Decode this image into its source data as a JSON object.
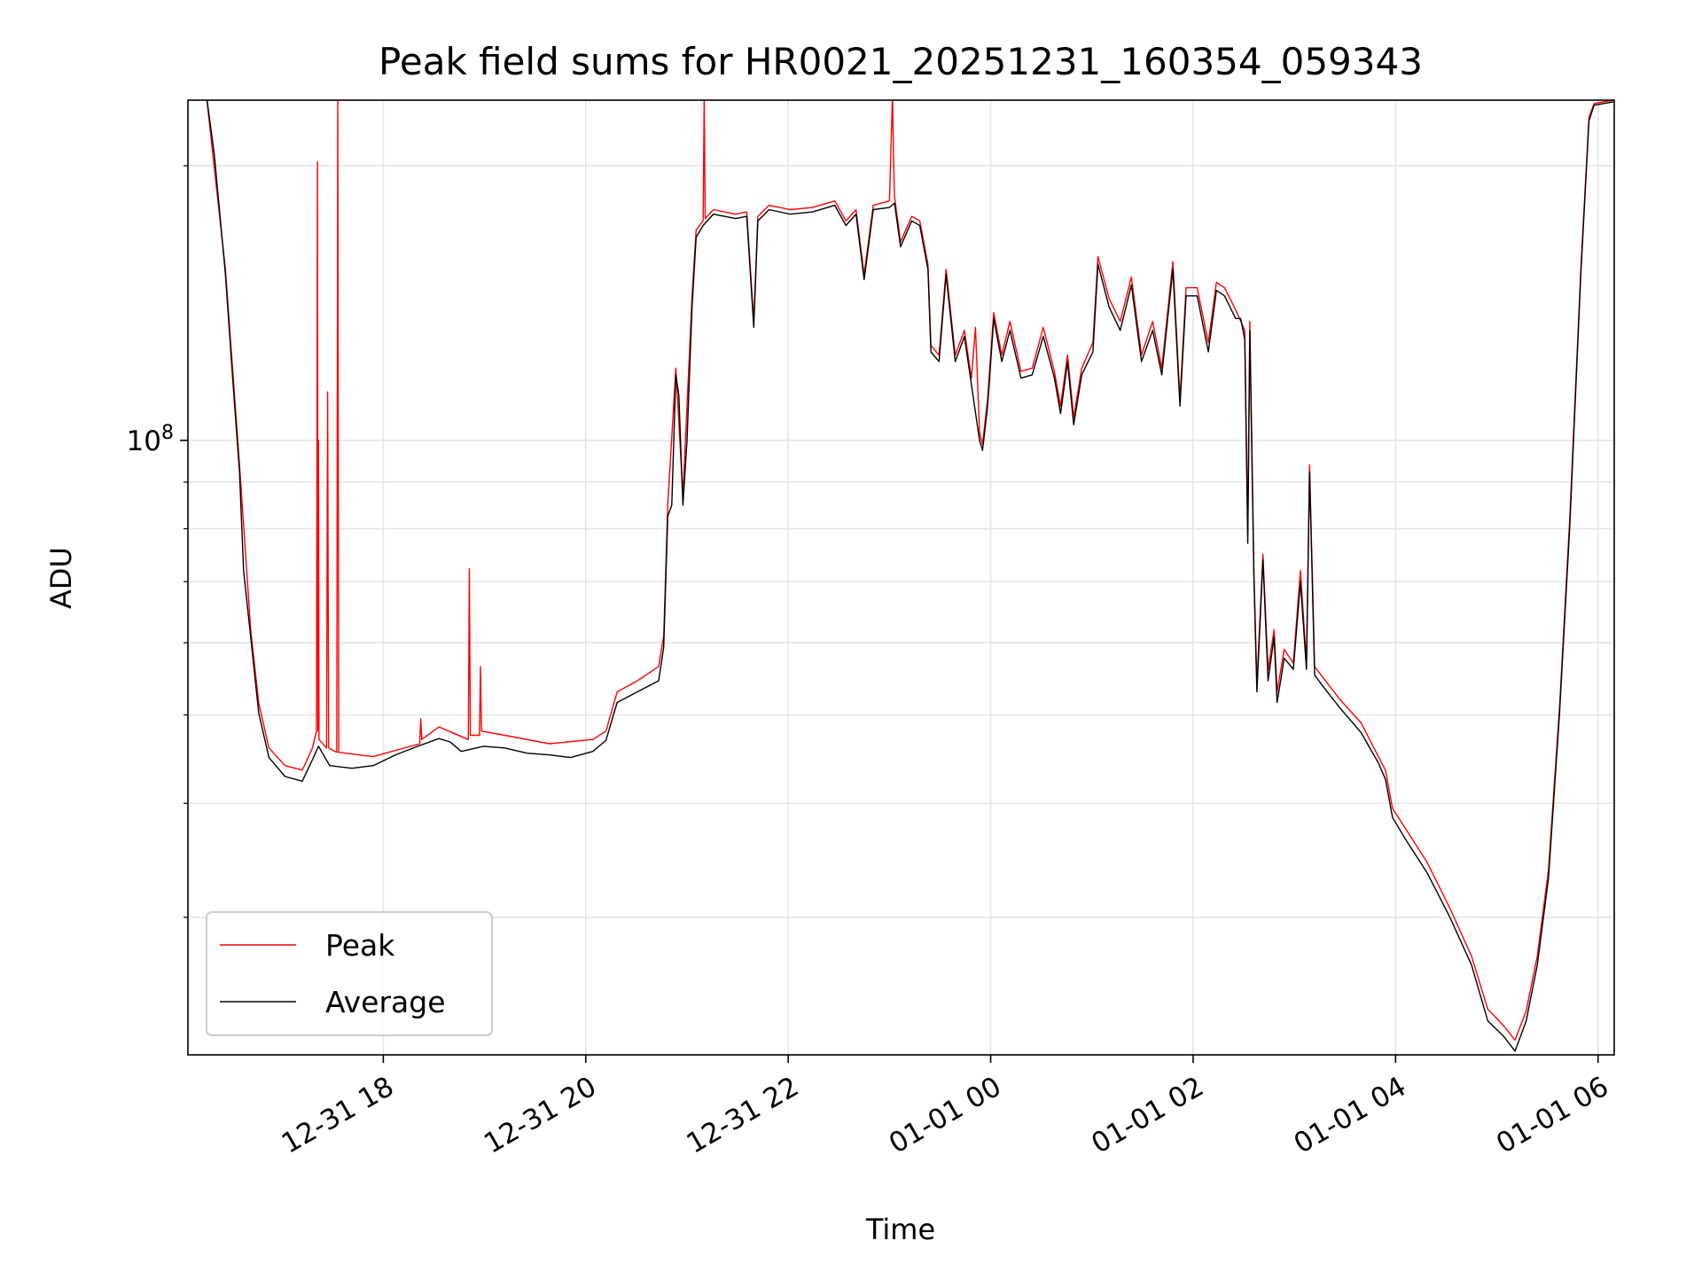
{
  "chart_data": {
    "type": "line",
    "title": "Peak field sums for HR0021_20251231_160354_059343",
    "xlabel": "Time",
    "ylabel": "ADU",
    "yscale": "log",
    "ylim": [
      21200000.0,
      236000000.0
    ],
    "xlim_hours": [
      16.07,
      30.16
    ],
    "grid": true,
    "legend_position": "lower-left",
    "x_ticks": [
      {
        "hours": 18,
        "label": "12-31 18"
      },
      {
        "hours": 20,
        "label": "12-31 20"
      },
      {
        "hours": 22,
        "label": "12-31 22"
      },
      {
        "hours": 24,
        "label": "01-01 00"
      },
      {
        "hours": 26,
        "label": "01-01 02"
      },
      {
        "hours": 28,
        "label": "01-01 04"
      },
      {
        "hours": 30,
        "label": "01-01 06"
      }
    ],
    "y_major_ticks": [
      {
        "value": 100000000.0,
        "label_base": "10",
        "label_exp": "8"
      }
    ],
    "y_minor_ticks": [
      30000000.0,
      40000000.0,
      50000000.0,
      60000000.0,
      70000000.0,
      80000000.0,
      90000000.0,
      200000000.0
    ],
    "series": [
      {
        "name": "Peak",
        "color": "#ff0000",
        "points": [
          [
            16.25,
            240000000.0
          ],
          [
            16.44,
            154000000.0
          ],
          [
            16.58,
            94000000.0
          ],
          [
            16.69,
            62000000.0
          ],
          [
            16.77,
            51500000.0
          ],
          [
            16.87,
            46000000.0
          ],
          [
            17.03,
            44000000.0
          ],
          [
            17.2,
            43500000.0
          ],
          [
            17.3,
            46000000.0
          ],
          [
            17.34,
            48000000.0
          ],
          [
            17.35,
            202000000.0
          ],
          [
            17.355,
            48000000.0
          ],
          [
            17.36,
            100000000.0
          ],
          [
            17.365,
            47000000.0
          ],
          [
            17.44,
            46000000.0
          ],
          [
            17.45,
            113000000.0
          ],
          [
            17.46,
            46000000.0
          ],
          [
            17.54,
            45500000.0
          ],
          [
            17.55,
            240000000.0
          ],
          [
            17.56,
            45500000.0
          ],
          [
            17.9,
            45000000.0
          ],
          [
            18.36,
            46500000.0
          ],
          [
            18.37,
            49500000.0
          ],
          [
            18.38,
            47000000.0
          ],
          [
            18.55,
            48500000.0
          ],
          [
            18.84,
            47000000.0
          ],
          [
            18.85,
            72300000.0
          ],
          [
            18.86,
            47500000.0
          ],
          [
            18.95,
            47500000.0
          ],
          [
            18.96,
            56500000.0
          ],
          [
            18.97,
            48000000.0
          ],
          [
            19.2,
            47500000.0
          ],
          [
            19.64,
            46500000.0
          ],
          [
            20.07,
            47000000.0
          ],
          [
            20.2,
            48000000.0
          ],
          [
            20.31,
            53000000.0
          ],
          [
            20.51,
            54500000.0
          ],
          [
            20.72,
            56500000.0
          ],
          [
            20.77,
            61000000.0
          ],
          [
            20.81,
            85000000.0
          ],
          [
            20.89,
            120000000.0
          ],
          [
            20.96,
            87000000.0
          ],
          [
            21.05,
            144000000.0
          ],
          [
            21.09,
            170000000.0
          ],
          [
            21.16,
            174000000.0
          ],
          [
            21.17,
            240000000.0
          ],
          [
            21.18,
            175000000.0
          ],
          [
            21.26,
            179000000.0
          ],
          [
            21.48,
            177000000.0
          ],
          [
            21.59,
            178000000.0
          ],
          [
            21.66,
            135000000.0
          ],
          [
            21.7,
            176000000.0
          ],
          [
            21.81,
            181000000.0
          ],
          [
            22.02,
            179000000.0
          ],
          [
            22.24,
            180000000.0
          ],
          [
            22.46,
            183000000.0
          ],
          [
            22.57,
            174000000.0
          ],
          [
            22.67,
            179000000.0
          ],
          [
            22.75,
            152000000.0
          ],
          [
            22.84,
            181000000.0
          ],
          [
            23.0,
            183000000.0
          ],
          [
            23.03,
            240000000.0
          ],
          [
            23.04,
            205000000.0
          ],
          [
            23.05,
            185000000.0
          ],
          [
            23.11,
            165000000.0
          ],
          [
            23.22,
            176000000.0
          ],
          [
            23.3,
            174000000.0
          ],
          [
            23.38,
            156000000.0
          ],
          [
            23.41,
            127000000.0
          ],
          [
            23.49,
            124000000.0
          ],
          [
            23.56,
            154000000.0
          ],
          [
            23.65,
            124000000.0
          ],
          [
            23.74,
            132000000.0
          ],
          [
            23.81,
            117000000.0
          ],
          [
            23.85,
            133000000.0
          ],
          [
            23.89,
            102000000.0
          ],
          [
            23.92,
            99000000.0
          ],
          [
            23.97,
            111000000.0
          ],
          [
            24.03,
            138000000.0
          ],
          [
            24.11,
            124000000.0
          ],
          [
            24.19,
            135000000.0
          ],
          [
            24.3,
            119000000.0
          ],
          [
            24.41,
            120000000.0
          ],
          [
            24.52,
            133000000.0
          ],
          [
            24.63,
            119000000.0
          ],
          [
            24.69,
            109000000.0
          ],
          [
            24.76,
            124000000.0
          ],
          [
            24.82,
            106000000.0
          ],
          [
            24.9,
            120000000.0
          ],
          [
            25.01,
            128000000.0
          ],
          [
            25.06,
            159000000.0
          ],
          [
            25.17,
            143000000.0
          ],
          [
            25.28,
            135000000.0
          ],
          [
            25.39,
            151000000.0
          ],
          [
            25.49,
            124000000.0
          ],
          [
            25.6,
            135000000.0
          ],
          [
            25.69,
            120000000.0
          ],
          [
            25.8,
            157000000.0
          ],
          [
            25.87,
            111000000.0
          ],
          [
            25.93,
            147000000.0
          ],
          [
            26.04,
            147000000.0
          ],
          [
            26.15,
            128000000.0
          ],
          [
            26.23,
            149000000.0
          ],
          [
            26.31,
            147000000.0
          ],
          [
            26.42,
            139000000.0
          ],
          [
            26.51,
            132000000.0
          ],
          [
            26.54,
            79000000.0
          ],
          [
            26.56,
            135000000.0
          ],
          [
            26.6,
            72000000.0
          ],
          [
            26.63,
            54000000.0
          ],
          [
            26.69,
            75000000.0
          ],
          [
            26.74,
            56000000.0
          ],
          [
            26.8,
            62000000.0
          ],
          [
            26.83,
            53000000.0
          ],
          [
            26.9,
            59000000.0
          ],
          [
            26.99,
            57000000.0
          ],
          [
            27.06,
            72000000.0
          ],
          [
            27.12,
            57000000.0
          ],
          [
            27.15,
            94000000.0
          ],
          [
            27.2,
            56500000.0
          ],
          [
            27.28,
            55000000.0
          ],
          [
            27.45,
            52000000.0
          ],
          [
            27.66,
            49000000.0
          ],
          [
            27.83,
            45000000.0
          ],
          [
            27.9,
            43500000.0
          ],
          [
            27.97,
            39500000.0
          ],
          [
            28.1,
            37500000.0
          ],
          [
            28.31,
            34500000.0
          ],
          [
            28.53,
            30800000.0
          ],
          [
            28.75,
            27200000.0
          ],
          [
            28.91,
            23800000.0
          ],
          [
            29.07,
            22800000.0
          ],
          [
            29.18,
            22000000.0
          ],
          [
            29.29,
            23700000.0
          ],
          [
            29.4,
            27200000.0
          ],
          [
            29.51,
            33800000.0
          ],
          [
            29.62,
            51000000.0
          ],
          [
            29.72,
            82000000.0
          ],
          [
            29.83,
            154000000.0
          ],
          [
            29.91,
            226000000.0
          ],
          [
            29.96,
            234000000.0
          ],
          [
            30.15,
            236000000.0
          ]
        ]
      },
      {
        "name": "Average",
        "color": "#000000",
        "points": [
          [
            16.25,
            240000000.0
          ],
          [
            16.33,
            206000000.0
          ],
          [
            16.44,
            152000000.0
          ],
          [
            16.51,
            118000000.0
          ],
          [
            16.58,
            92300000.0
          ],
          [
            16.62,
            71900000.0
          ],
          [
            16.69,
            60900000.0
          ],
          [
            16.77,
            50200000.0
          ],
          [
            16.87,
            44900000.0
          ],
          [
            17.03,
            42800000.0
          ],
          [
            17.2,
            42300000.0
          ],
          [
            17.31,
            44900000.0
          ],
          [
            17.36,
            46200000.0
          ],
          [
            17.47,
            44000000.0
          ],
          [
            17.69,
            43700000.0
          ],
          [
            17.9,
            44000000.0
          ],
          [
            18.12,
            45200000.0
          ],
          [
            18.34,
            46200000.0
          ],
          [
            18.55,
            47100000.0
          ],
          [
            18.66,
            46700000.0
          ],
          [
            18.77,
            45600000.0
          ],
          [
            18.99,
            46200000.0
          ],
          [
            19.2,
            46000000.0
          ],
          [
            19.42,
            45400000.0
          ],
          [
            19.64,
            45200000.0
          ],
          [
            19.85,
            44900000.0
          ],
          [
            20.07,
            45600000.0
          ],
          [
            20.2,
            46900000.0
          ],
          [
            20.31,
            51600000.0
          ],
          [
            20.51,
            53000000.0
          ],
          [
            20.72,
            54500000.0
          ],
          [
            20.77,
            59300000.0
          ],
          [
            20.81,
            82600000.0
          ],
          [
            20.85,
            84900000.0
          ],
          [
            20.89,
            118000000.0
          ],
          [
            20.92,
            112000000.0
          ],
          [
            20.96,
            84900000.0
          ],
          [
            21.0,
            100000000.0
          ],
          [
            21.05,
            140000000.0
          ],
          [
            21.09,
            167000000.0
          ],
          [
            21.16,
            172000000.0
          ],
          [
            21.26,
            177000000.0
          ],
          [
            21.48,
            175000000.0
          ],
          [
            21.59,
            176000000.0
          ],
          [
            21.66,
            133000000.0
          ],
          [
            21.7,
            174000000.0
          ],
          [
            21.81,
            179000000.0
          ],
          [
            22.02,
            177000000.0
          ],
          [
            22.24,
            178000000.0
          ],
          [
            22.46,
            181000000.0
          ],
          [
            22.57,
            172000000.0
          ],
          [
            22.67,
            177000000.0
          ],
          [
            22.75,
            150000000.0
          ],
          [
            22.84,
            179000000.0
          ],
          [
            23.0,
            180000000.0
          ],
          [
            23.05,
            182000000.0
          ],
          [
            23.11,
            163000000.0
          ],
          [
            23.22,
            174000000.0
          ],
          [
            23.3,
            172000000.0
          ],
          [
            23.38,
            154000000.0
          ],
          [
            23.41,
            125000000.0
          ],
          [
            23.49,
            122000000.0
          ],
          [
            23.56,
            152000000.0
          ],
          [
            23.65,
            122000000.0
          ],
          [
            23.74,
            130000000.0
          ],
          [
            23.81,
            115000000.0
          ],
          [
            23.89,
            100000000.0
          ],
          [
            23.92,
            97500000.0
          ],
          [
            23.97,
            109000000.0
          ],
          [
            24.03,
            136000000.0
          ],
          [
            24.11,
            122000000.0
          ],
          [
            24.19,
            132000000.0
          ],
          [
            24.3,
            117000000.0
          ],
          [
            24.41,
            118000000.0
          ],
          [
            24.52,
            130000000.0
          ],
          [
            24.63,
            117000000.0
          ],
          [
            24.69,
            107000000.0
          ],
          [
            24.76,
            122000000.0
          ],
          [
            24.82,
            104000000.0
          ],
          [
            24.9,
            118000000.0
          ],
          [
            25.01,
            125000000.0
          ],
          [
            25.06,
            156000000.0
          ],
          [
            25.17,
            140000000.0
          ],
          [
            25.28,
            132000000.0
          ],
          [
            25.39,
            148000000.0
          ],
          [
            25.49,
            122000000.0
          ],
          [
            25.6,
            132000000.0
          ],
          [
            25.69,
            118000000.0
          ],
          [
            25.8,
            154000000.0
          ],
          [
            25.87,
            109000000.0
          ],
          [
            25.93,
            144000000.0
          ],
          [
            26.04,
            144000000.0
          ],
          [
            26.15,
            125000000.0
          ],
          [
            26.23,
            146000000.0
          ],
          [
            26.31,
            144000000.0
          ],
          [
            26.42,
            136000000.0
          ],
          [
            26.47,
            136000000.0
          ],
          [
            26.51,
            129000000.0
          ],
          [
            26.54,
            77100000.0
          ],
          [
            26.56,
            132000000.0
          ],
          [
            26.6,
            70900000.0
          ],
          [
            26.63,
            53000000.0
          ],
          [
            26.69,
            74000000.0
          ],
          [
            26.74,
            54500000.0
          ],
          [
            26.8,
            60900000.0
          ],
          [
            26.83,
            51600000.0
          ],
          [
            26.9,
            57700000.0
          ],
          [
            26.99,
            56100000.0
          ],
          [
            27.06,
            70000000.0
          ],
          [
            27.12,
            56100000.0
          ],
          [
            27.15,
            92300000.0
          ],
          [
            27.2,
            55300000.0
          ],
          [
            27.28,
            53800000.0
          ],
          [
            27.45,
            50900000.0
          ],
          [
            27.66,
            47800000.0
          ],
          [
            27.83,
            44300000.0
          ],
          [
            27.9,
            42500000.0
          ],
          [
            27.97,
            38600000.0
          ],
          [
            28.1,
            36500000.0
          ],
          [
            28.31,
            33600000.0
          ],
          [
            28.53,
            30100000.0
          ],
          [
            28.75,
            26600000.0
          ],
          [
            28.91,
            23100000.0
          ],
          [
            29.07,
            22200000.0
          ],
          [
            29.18,
            21400000.0
          ],
          [
            29.29,
            23100000.0
          ],
          [
            29.4,
            26600000.0
          ],
          [
            29.51,
            33100000.0
          ],
          [
            29.62,
            50200000.0
          ],
          [
            29.72,
            80400000.0
          ],
          [
            29.83,
            152000000.0
          ],
          [
            29.91,
            224000000.0
          ],
          [
            29.96,
            233000000.0
          ],
          [
            30.15,
            235000000.0
          ]
        ]
      }
    ]
  }
}
